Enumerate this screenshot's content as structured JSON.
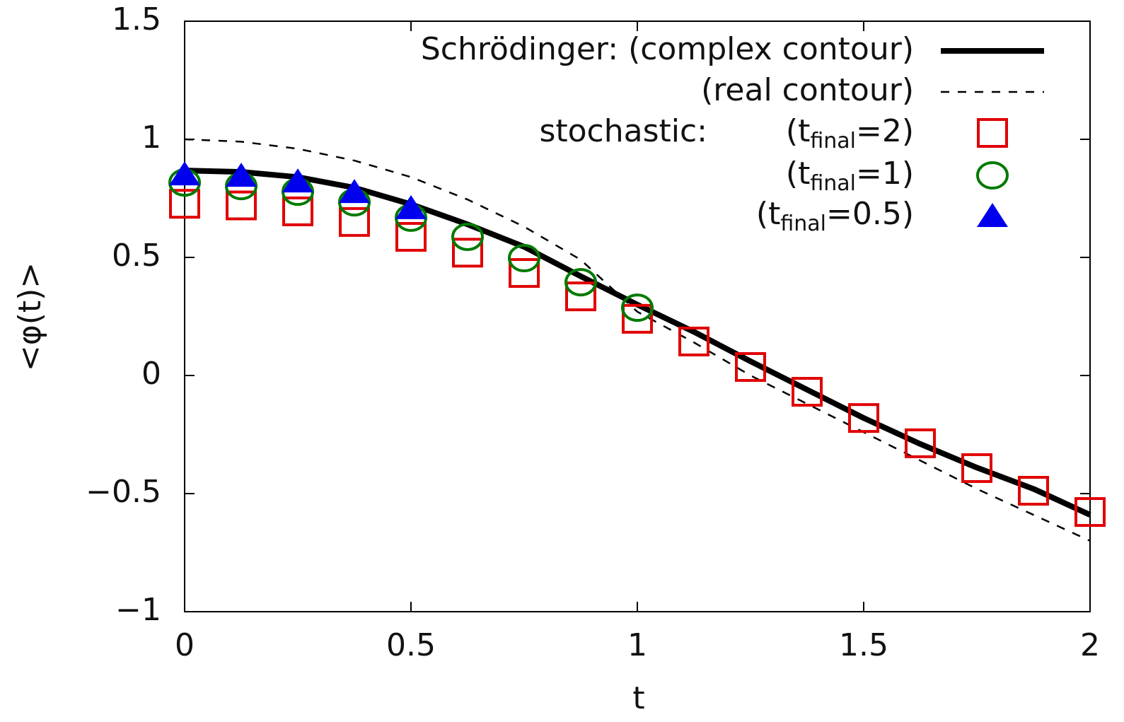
{
  "chart_data": {
    "type": "line",
    "x_label": "t",
    "y_label": "<φ(t)>",
    "xlim": [
      0,
      2
    ],
    "ylim": [
      -1,
      1.5
    ],
    "xticks": [
      0,
      0.5,
      1,
      1.5,
      2
    ],
    "yticks": [
      {
        "value": -1,
        "label": "−1"
      },
      {
        "value": -0.5,
        "label": "−0.5"
      },
      0,
      0.5,
      1,
      1.5
    ],
    "grid": false,
    "legend_group_label": "stochastic:",
    "series": [
      {
        "name": [
          "Schrödinger: (complex contour)"
        ],
        "style": "solid",
        "color": "#000000",
        "x": [
          0,
          0.125,
          0.25,
          0.375,
          0.5,
          0.625,
          0.75,
          0.875,
          1,
          1.125,
          1.25,
          1.375,
          1.5,
          1.625,
          1.75,
          1.875,
          2
        ],
        "values": [
          0.868,
          0.862,
          0.84,
          0.795,
          0.725,
          0.64,
          0.545,
          0.42,
          0.3,
          0.185,
          0.06,
          -0.06,
          -0.18,
          -0.29,
          -0.39,
          -0.48,
          -0.59
        ]
      },
      {
        "name": [
          "(real contour)"
        ],
        "style": "dashed",
        "color": "#000000",
        "x": [
          0,
          0.125,
          0.25,
          0.375,
          0.5,
          0.625,
          0.75,
          0.875,
          1,
          1.125,
          1.25,
          1.375,
          1.5,
          1.625,
          1.75,
          1.875,
          2
        ],
        "values": [
          1.0,
          0.99,
          0.96,
          0.91,
          0.84,
          0.745,
          0.63,
          0.49,
          0.27,
          0.14,
          0.0,
          -0.12,
          -0.24,
          -0.36,
          -0.48,
          -0.59,
          -0.7
        ]
      },
      {
        "name": [
          "(t",
          "final",
          "=2)"
        ],
        "style": "square",
        "color": "#e00000",
        "x": [
          0,
          0.125,
          0.25,
          0.375,
          0.5,
          0.625,
          0.75,
          0.875,
          1,
          1.125,
          1.25,
          1.375,
          1.5,
          1.625,
          1.75,
          1.875,
          2
        ],
        "values": [
          0.727,
          0.72,
          0.695,
          0.65,
          0.587,
          0.52,
          0.434,
          0.335,
          0.24,
          0.144,
          0.036,
          -0.069,
          -0.18,
          -0.287,
          -0.392,
          -0.488,
          -0.578
        ]
      },
      {
        "name": [
          "(t",
          "final",
          "=1)"
        ],
        "style": "circle",
        "color": "#007a00",
        "x": [
          0,
          0.125,
          0.25,
          0.375,
          0.5,
          0.625,
          0.75,
          0.875,
          1
        ],
        "values": [
          0.817,
          0.802,
          0.778,
          0.733,
          0.668,
          0.587,
          0.497,
          0.395,
          0.287
        ]
      },
      {
        "name": [
          "(t",
          "final",
          "=0.5)"
        ],
        "style": "triangle",
        "color": "#0000ee",
        "x": [
          0,
          0.125,
          0.25,
          0.375,
          0.5
        ],
        "values": [
          0.853,
          0.847,
          0.823,
          0.778,
          0.71
        ]
      }
    ]
  }
}
